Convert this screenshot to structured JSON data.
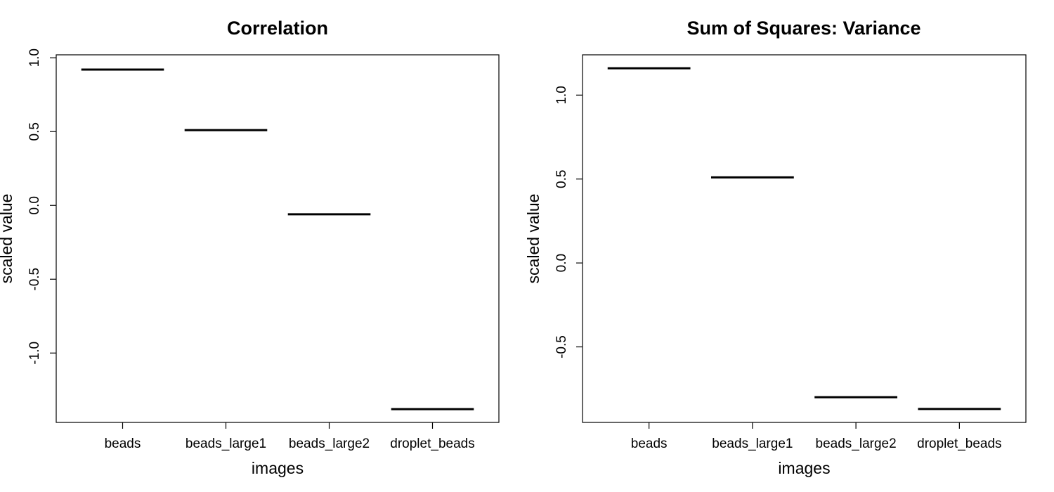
{
  "chart_data": [
    {
      "type": "line",
      "title": "Correlation",
      "xlabel": "images",
      "ylabel": "scaled value",
      "categories": [
        "beads",
        "beads_large1",
        "beads_large2",
        "droplet_beads"
      ],
      "values": [
        0.92,
        0.51,
        -0.06,
        -1.38
      ],
      "ylim": [
        -1.47,
        1.02
      ],
      "yticks": [
        -1.0,
        -0.5,
        0.0,
        0.5,
        1.0
      ],
      "ytick_labels": [
        "-1.0",
        "-0.5",
        "0.0",
        "0.5",
        "1.0"
      ],
      "grid": false,
      "legend": "none"
    },
    {
      "type": "line",
      "title": "Sum of Squares: Variance",
      "xlabel": "images",
      "ylabel": "scaled value",
      "categories": [
        "beads",
        "beads_large1",
        "beads_large2",
        "droplet_beads"
      ],
      "values": [
        1.16,
        0.51,
        -0.8,
        -0.87
      ],
      "ylim": [
        -0.95,
        1.24
      ],
      "yticks": [
        -0.5,
        0.0,
        0.5,
        1.0
      ],
      "ytick_labels": [
        "-0.5",
        "0.0",
        "0.5",
        "1.0"
      ],
      "grid": false,
      "legend": "none"
    }
  ]
}
